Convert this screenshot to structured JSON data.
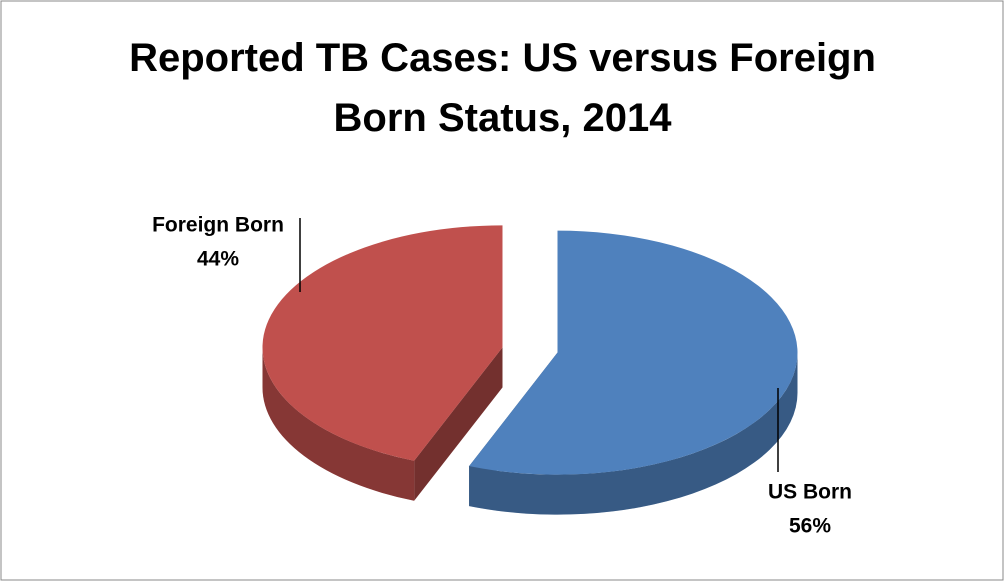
{
  "chart_data": {
    "type": "pie",
    "title": "Reported TB Cases: US versus Foreign Born Status, 2014",
    "categories": [
      "US Born",
      "Foreign Born"
    ],
    "values": [
      56,
      44
    ],
    "value_labels": [
      "56%",
      "44%"
    ],
    "colors": [
      "#4f81bd",
      "#c0504d"
    ]
  }
}
